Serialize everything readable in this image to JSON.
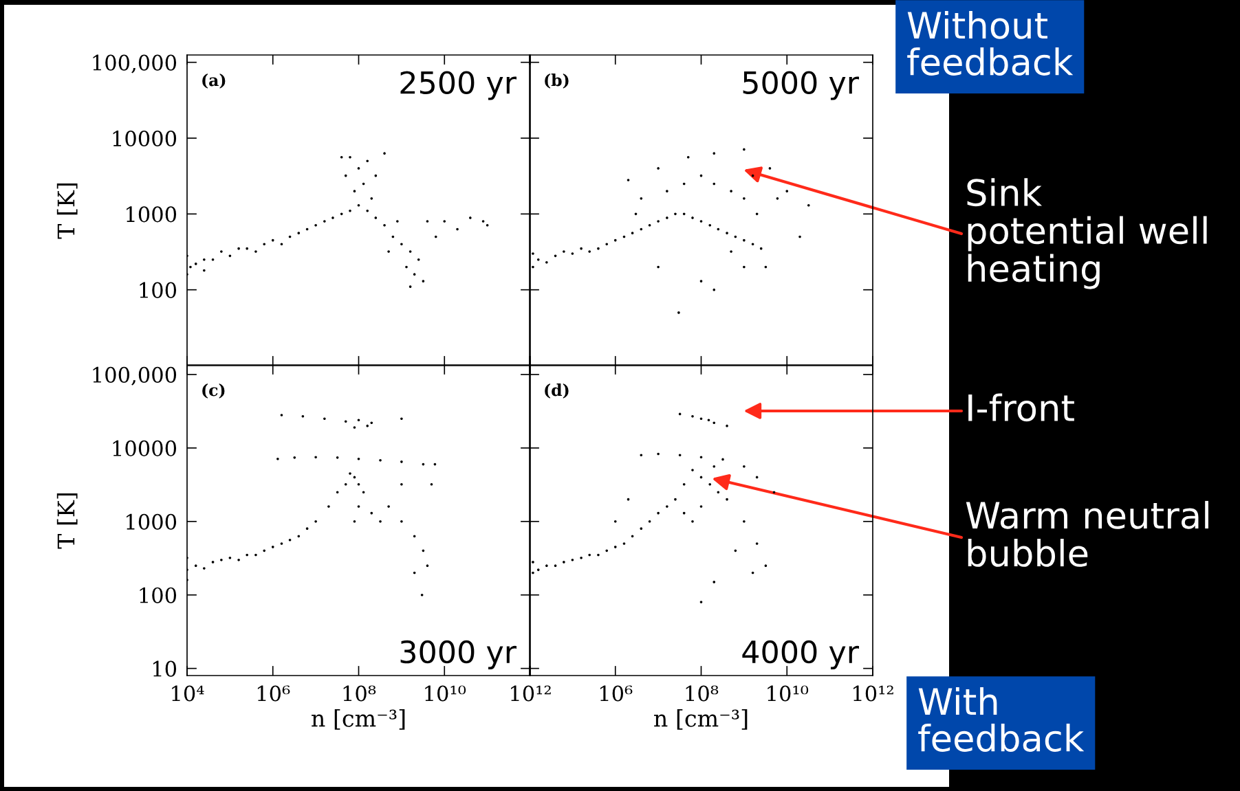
{
  "chart_data": [
    {
      "type": "scatter",
      "ylabel": "T [K]",
      "xlim": [
        10000.0,
        1000000000000.0
      ],
      "ylim": [
        10,
        125000
      ],
      "log": "xy",
      "marker": "circle",
      "grid": false,
      "legend": false,
      "tick_labels": "y",
      "xticks": [
        {
          "value": 10000.0,
          "label": null
        },
        {
          "value": 1000000.0,
          "label": null
        },
        {
          "value": 100000000.0,
          "label": null
        },
        {
          "value": 10000000000.0,
          "label": null
        },
        {
          "value": 1000000000000.0,
          "label": null
        }
      ],
      "yticks": [
        100,
        1000,
        10000,
        {
          "value": 100000,
          "label": "100,000"
        }
      ],
      "annotations": [
        "(a)",
        "2500 yr"
      ],
      "series": [
        {
          "color": "#000000",
          "x": [
            12000.0,
            10000.0,
            10000.0,
            16000.0,
            25000.0,
            25000.0,
            40000.0,
            63000.0,
            100000.0,
            160000.0,
            250000.0,
            400000.0,
            630000.0,
            1000000.0,
            1600000.0,
            2500000.0,
            4000000.0,
            6300000.0,
            10000000.0,
            16000000.0,
            25000000.0,
            40000000.0,
            63000000.0,
            100000000.0,
            160000000.0,
            80000000.0,
            50000000.0,
            63000000.0,
            100000000.0,
            130000000.0,
            160000000.0,
            250000000.0,
            200000000.0,
            250000000.0,
            400000000.0,
            630000000.0,
            1000000000.0,
            1600000000.0,
            2500000000.0,
            2000000000.0,
            3200000000.0,
            1300000000.0,
            800000000.0,
            4000000000.0,
            6300000000.0,
            10000000000.0,
            20000000000.0,
            40000000000.0,
            80000000000.0,
            100000000000.0,
            400000000.0,
            40000000.0,
            1600000000.0,
            500000000.0
          ],
          "values": [
            200,
            280,
            160,
            220,
            250,
            180,
            250,
            320,
            280,
            350,
            350,
            320,
            400,
            450,
            400,
            500,
            560,
            630,
            710,
            800,
            890,
            1000,
            1100,
            1300,
            1100,
            2000,
            3200,
            5600,
            4000,
            2500,
            5000,
            3200,
            1600,
            890,
            710,
            500,
            400,
            320,
            250,
            160,
            130,
            200,
            800,
            800,
            500,
            800,
            630,
            890,
            800,
            710,
            6300,
            5600,
            110,
            320
          ]
        }
      ]
    },
    {
      "type": "scatter",
      "xlim": [
        10000.0,
        1000000000000.0
      ],
      "ylim": [
        10,
        125000
      ],
      "log": "xy",
      "marker": "circle",
      "grid": false,
      "legend": false,
      "tick_labels": false,
      "xticks": [
        {
          "value": 10000.0,
          "label": null
        },
        {
          "value": 1000000.0,
          "label": null
        },
        {
          "value": 100000000.0,
          "label": null
        },
        {
          "value": 10000000000.0,
          "label": null
        },
        {
          "value": 1000000000000.0,
          "label": null
        }
      ],
      "yticks": [
        {
          "value": 100,
          "label": null
        },
        {
          "value": 1000,
          "label": null
        },
        {
          "value": 10000,
          "label": null
        },
        {
          "value": 100000,
          "label": null
        }
      ],
      "annotations": [
        "(b)",
        "5000 yr",
        "Without\nfeedback",
        "Sink\npotential well\nheating"
      ],
      "series": [
        {
          "color": "#000000",
          "x": [
            12000.0,
            12000.0,
            16000.0,
            25000.0,
            40000.0,
            63000.0,
            100000.0,
            160000.0,
            250000.0,
            400000.0,
            630000.0,
            1000000.0,
            1600000.0,
            2500000.0,
            4000000.0,
            6300000.0,
            10000000.0,
            16000000.0,
            25000000.0,
            40000000.0,
            63000000.0,
            100000000.0,
            160000000.0,
            250000000.0,
            400000000.0,
            630000000.0,
            1000000000.0,
            1600000000.0,
            2500000000.0,
            3200000000.0,
            2000000000.0,
            1000000000.0,
            500000000.0,
            200000000.0,
            100000000.0,
            40000000.0,
            16000000.0,
            4000000.0,
            2000000.0,
            10000000.0,
            50000000.0,
            200000000.0,
            1000000000.0,
            4000000000.0,
            10000000000.0,
            32000000000.0,
            20000000000.0,
            1000000000.0,
            100000000.0,
            30000000.0,
            10000000.0,
            200000000.0,
            500000000.0,
            3000000.0,
            1600000000.0,
            6000000000.0
          ],
          "values": [
            200,
            300,
            250,
            230,
            280,
            320,
            300,
            350,
            320,
            350,
            400,
            450,
            500,
            560,
            630,
            710,
            800,
            890,
            1000,
            1000,
            890,
            800,
            710,
            630,
            560,
            500,
            450,
            400,
            350,
            200,
            1000,
            1600,
            2000,
            2500,
            3200,
            2500,
            2000,
            1600,
            2800,
            4000,
            5600,
            6300,
            7100,
            4000,
            2000,
            1300,
            500,
            200,
            130,
            50,
            200,
            100,
            320,
            1000,
            3200,
            1600
          ]
        }
      ]
    },
    {
      "type": "scatter",
      "ylabel": "T [K]",
      "xlabel": "n [cm⁻³]",
      "xlim": [
        10000.0,
        1000000000000.0
      ],
      "ylim": [
        8,
        135000
      ],
      "log": "xy",
      "marker": "circle",
      "grid": false,
      "legend": false,
      "xticks": [
        {
          "value": 10000.0,
          "label": "10⁴"
        },
        {
          "value": 1000000.0,
          "label": "10⁶"
        },
        {
          "value": 100000000.0,
          "label": "10⁸"
        },
        {
          "value": 10000000000.0,
          "label": "10¹⁰"
        },
        {
          "value": 1000000000000.0,
          "label": "10¹²"
        }
      ],
      "yticks": [
        10,
        100,
        1000,
        10000,
        {
          "value": 100000,
          "label": "100,000"
        }
      ],
      "annotations": [
        "(c)",
        "3000 yr"
      ],
      "series": [
        {
          "color": "#000000",
          "x": [
            10000.0,
            10000.0,
            10000.0,
            16000.0,
            25000.0,
            40000.0,
            63000.0,
            100000.0,
            160000.0,
            250000.0,
            400000.0,
            630000.0,
            1000000.0,
            1600000.0,
            2500000.0,
            4000000.0,
            6300000.0,
            10000000.0,
            20000000.0,
            32000000.0,
            50000000.0,
            63000000.0,
            80000000.0,
            100000000.0,
            130000000.0,
            100000000.0,
            80000000.0,
            200000000.0,
            320000000.0,
            500000000.0,
            1000000000.0,
            2000000000.0,
            3200000000.0,
            4000000000.0,
            3000000000.0,
            2000000000.0,
            1000000000.0,
            5000000000.0,
            1300000.0,
            3200000.0,
            10000000.0,
            32000000.0,
            100000000.0,
            320000000.0,
            1000000000.0,
            3200000000.0,
            6000000000.0,
            1600000.0,
            5000000.0,
            16000000.0,
            50000000.0,
            100000000.0,
            160000000.0,
            200000000.0,
            80000000.0,
            1000000000.0
          ],
          "values": [
            220,
            320,
            160,
            250,
            230,
            280,
            300,
            320,
            300,
            350,
            350,
            400,
            450,
            500,
            560,
            630,
            800,
            1000,
            1600,
            2500,
            3200,
            4500,
            4000,
            3200,
            2500,
            1600,
            1000,
            1300,
            1000,
            1600,
            1000,
            630,
            400,
            250,
            100,
            200,
            3200,
            3200,
            7100,
            7400,
            7500,
            7400,
            7100,
            6800,
            6500,
            6000,
            6000,
            28000,
            27000,
            25000,
            23000,
            24000,
            20000,
            22000,
            19000,
            25000
          ]
        }
      ]
    },
    {
      "type": "scatter",
      "xlabel": "n [cm⁻³]",
      "xlim": [
        10000.0,
        1000000000000.0
      ],
      "ylim": [
        8,
        135000
      ],
      "log": "xy",
      "marker": "circle",
      "grid": false,
      "legend": false,
      "tick_labels": "x",
      "xticks": [
        {
          "value": 10000.0,
          "label": null
        },
        {
          "value": 1000000.0,
          "label": "10⁶"
        },
        {
          "value": 100000000.0,
          "label": "10⁸"
        },
        {
          "value": 10000000000.0,
          "label": "10¹⁰"
        },
        {
          "value": 1000000000000.0,
          "label": "10¹²"
        }
      ],
      "yticks": [
        {
          "value": 10,
          "label": null
        },
        {
          "value": 100,
          "label": null
        },
        {
          "value": 1000,
          "label": null
        },
        {
          "value": 10000,
          "label": null
        },
        {
          "value": 100000,
          "label": null
        }
      ],
      "annotations": [
        "(d)",
        "4000 yr",
        "With\nfeedback",
        "I-front",
        "Warm neutral\nbubble"
      ],
      "series": [
        {
          "color": "#000000",
          "x": [
            12000.0,
            12000.0,
            16000.0,
            25000.0,
            40000.0,
            63000.0,
            100000.0,
            160000.0,
            250000.0,
            400000.0,
            630000.0,
            1000000.0,
            1600000.0,
            2500000.0,
            4000000.0,
            6300000.0,
            10000000.0,
            16000000.0,
            25000000.0,
            40000000.0,
            63000000.0,
            100000000.0,
            40000000.0,
            63000000.0,
            100000000.0,
            160000000.0,
            250000000.0,
            400000000.0,
            200000000.0,
            4000000.0,
            10000000.0,
            32000000.0,
            100000000.0,
            320000000.0,
            1000000000.0,
            2000000000.0,
            5000000000.0,
            1000000000.0,
            2000000000.0,
            3200000000.0,
            1600000000.0,
            100000000.0,
            200000000.0,
            630000000.0,
            1000000.0,
            2000000.0,
            32000000.0,
            63000000.0,
            100000000.0,
            200000000.0,
            400000000.0,
            150000000.0
          ],
          "values": [
            200,
            280,
            220,
            250,
            250,
            280,
            300,
            320,
            350,
            350,
            400,
            450,
            500,
            630,
            800,
            1000,
            1300,
            1600,
            2000,
            1300,
            1000,
            1600,
            3200,
            5000,
            4000,
            3200,
            2500,
            2000,
            5600,
            8000,
            8300,
            8000,
            7500,
            7000,
            5600,
            4000,
            2500,
            1000,
            500,
            250,
            200,
            80,
            150,
            400,
            1000,
            2000,
            29000,
            27000,
            25000,
            22000,
            20000,
            24000
          ]
        }
      ]
    }
  ]
}
